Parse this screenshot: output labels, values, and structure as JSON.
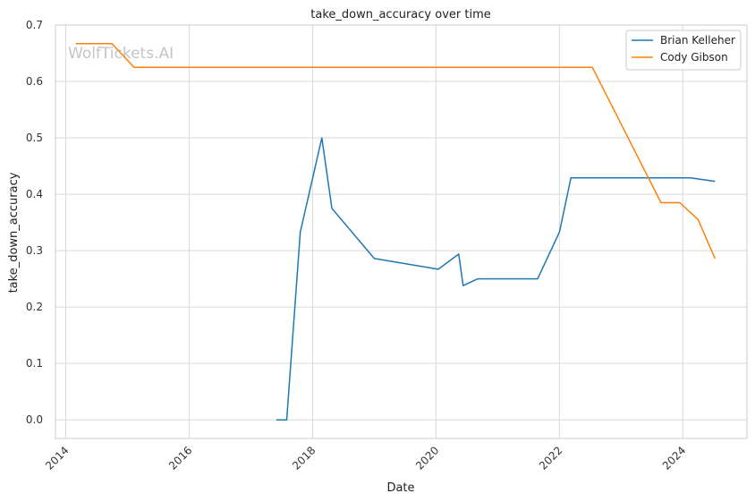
{
  "chart_data": {
    "type": "line",
    "title": "take_down_accuracy over time",
    "xlabel": "Date",
    "ylabel": "take_down_accuracy",
    "x_ticks": [
      "2014",
      "2016",
      "2018",
      "2020",
      "2022",
      "2024"
    ],
    "y_ticks": [
      "0.0",
      "0.1",
      "0.2",
      "0.3",
      "0.4",
      "0.5",
      "0.6",
      "0.7"
    ],
    "xlim": [
      "2013-11-01",
      "2025-01-15"
    ],
    "ylim": [
      -0.033,
      0.7
    ],
    "grid": true,
    "legend_position": "top-right",
    "watermark": "WolfTickets.AI",
    "series": [
      {
        "name": "Brian Kelleher",
        "color": "#1f77b4",
        "points": [
          [
            "2017-06-01",
            0.0
          ],
          [
            "2017-08-01",
            0.0
          ],
          [
            "2017-10-20",
            0.333
          ],
          [
            "2018-02-25",
            0.5
          ],
          [
            "2018-04-25",
            0.375
          ],
          [
            "2019-01-01",
            0.286
          ],
          [
            "2020-01-15",
            0.267
          ],
          [
            "2020-05-15",
            0.294
          ],
          [
            "2020-06-10",
            0.238
          ],
          [
            "2020-09-05",
            0.25
          ],
          [
            "2021-08-25",
            0.25
          ],
          [
            "2022-01-01",
            0.333
          ],
          [
            "2022-03-10",
            0.429
          ],
          [
            "2024-02-15",
            0.429
          ],
          [
            "2024-07-10",
            0.423
          ]
        ]
      },
      {
        "name": "Cody Gibson",
        "color": "#ff7f0e",
        "points": [
          [
            "2014-03-01",
            0.667
          ],
          [
            "2014-10-01",
            0.667
          ],
          [
            "2015-02-10",
            0.625
          ],
          [
            "2022-07-15",
            0.625
          ],
          [
            "2023-08-25",
            0.385
          ],
          [
            "2023-12-15",
            0.385
          ],
          [
            "2024-04-01",
            0.355
          ],
          [
            "2024-07-10",
            0.286
          ]
        ]
      }
    ]
  }
}
